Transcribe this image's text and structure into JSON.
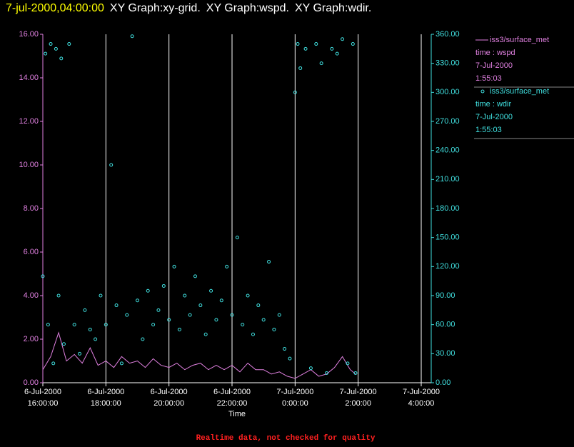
{
  "chart_data": {
    "type": "line-scatter",
    "title": [
      "7-jul-2000,04:00:00",
      "XY Graph:xy-grid.",
      "XY Graph:wspd.",
      "XY Graph:wdir."
    ],
    "x_label": "Time",
    "note": "Realtime data, not checked for quality",
    "xlim": [
      "2000-07-06T16:00:00",
      "2000-07-07T04:19:00"
    ],
    "xticks": [
      {
        "value": "2000-07-06T16:00:00",
        "label": [
          "6-Jul-2000",
          "16:00:00"
        ]
      },
      {
        "value": "2000-07-06T18:00:00",
        "label": [
          "6-Jul-2000",
          "18:00:00"
        ]
      },
      {
        "value": "2000-07-06T20:00:00",
        "label": [
          "6-Jul-2000",
          "20:00:00"
        ]
      },
      {
        "value": "2000-07-06T22:00:00",
        "label": [
          "6-Jul-2000",
          "22:00:00"
        ]
      },
      {
        "value": "2000-07-07T00:00:00",
        "label": [
          "7-Jul-2000",
          "0:00:00"
        ]
      },
      {
        "value": "2000-07-07T02:00:00",
        "label": [
          "7-Jul-2000",
          "2:00:00"
        ]
      },
      {
        "value": "2000-07-07T04:00:00",
        "label": [
          "7-Jul-2000",
          "4:00:00"
        ]
      }
    ],
    "ylim": [
      0,
      16
    ],
    "yticks": [
      {
        "value": 0,
        "label": "0.00"
      },
      {
        "value": 2,
        "label": "2.00"
      },
      {
        "value": 4,
        "label": "4.00"
      },
      {
        "value": 6,
        "label": "6.00"
      },
      {
        "value": 8,
        "label": "8.00"
      },
      {
        "value": 10,
        "label": "10.00"
      },
      {
        "value": 12,
        "label": "12.00"
      },
      {
        "value": 14,
        "label": "14.00"
      },
      {
        "value": 16,
        "label": "16.00"
      }
    ],
    "y2lim": [
      0,
      360
    ],
    "y2ticks": [
      {
        "value": 0,
        "label": "0.00"
      },
      {
        "value": 30,
        "label": "30.00"
      },
      {
        "value": 60,
        "label": "60.00"
      },
      {
        "value": 90,
        "label": "90.00"
      },
      {
        "value": 120,
        "label": "120.00"
      },
      {
        "value": 150,
        "label": "150.00"
      },
      {
        "value": 180,
        "label": "180.00"
      },
      {
        "value": 210,
        "label": "210.00"
      },
      {
        "value": 240,
        "label": "240.00"
      },
      {
        "value": 270,
        "label": "270.00"
      },
      {
        "value": 300,
        "label": "300.00"
      },
      {
        "value": 330,
        "label": "330.00"
      },
      {
        "value": 360,
        "label": "360.00"
      }
    ],
    "grid": true,
    "series": [
      {
        "name": "iss3/surface_met",
        "kind": "line",
        "color": "#e080e0",
        "axis": "y",
        "legend_lines": [
          "time : wspd",
          "7-Jul-2000",
          "1:55:03"
        ],
        "x": [
          "2000-07-06T16:00",
          "2000-07-06T16:15",
          "2000-07-06T16:30",
          "2000-07-06T16:45",
          "2000-07-06T17:00",
          "2000-07-06T17:15",
          "2000-07-06T17:30",
          "2000-07-06T17:45",
          "2000-07-06T18:00",
          "2000-07-06T18:15",
          "2000-07-06T18:30",
          "2000-07-06T18:45",
          "2000-07-06T19:00",
          "2000-07-06T19:15",
          "2000-07-06T19:30",
          "2000-07-06T19:45",
          "2000-07-06T20:00",
          "2000-07-06T20:15",
          "2000-07-06T20:30",
          "2000-07-06T20:45",
          "2000-07-06T21:00",
          "2000-07-06T21:15",
          "2000-07-06T21:30",
          "2000-07-06T21:45",
          "2000-07-06T22:00",
          "2000-07-06T22:15",
          "2000-07-06T22:30",
          "2000-07-06T22:45",
          "2000-07-06T23:00",
          "2000-07-06T23:15",
          "2000-07-06T23:30",
          "2000-07-06T23:45",
          "2000-07-07T00:00",
          "2000-07-07T00:15",
          "2000-07-07T00:30",
          "2000-07-07T00:45",
          "2000-07-07T01:00",
          "2000-07-07T01:15",
          "2000-07-07T01:30",
          "2000-07-07T01:45",
          "2000-07-07T01:55"
        ],
        "values": [
          0.6,
          1.2,
          2.3,
          1.0,
          1.3,
          0.9,
          1.6,
          0.8,
          1.0,
          0.7,
          1.2,
          0.9,
          1.0,
          0.7,
          1.1,
          0.8,
          0.7,
          0.9,
          0.6,
          0.8,
          0.9,
          0.6,
          0.8,
          0.6,
          0.8,
          0.5,
          0.9,
          0.6,
          0.6,
          0.4,
          0.5,
          0.3,
          0.2,
          0.4,
          0.6,
          0.3,
          0.4,
          0.7,
          1.2,
          0.6,
          0.4
        ]
      },
      {
        "name": "iss3/surface_met",
        "kind": "scatter",
        "color": "#40e0e0",
        "axis": "y2",
        "legend_lines": [
          "time : wdir",
          "7-Jul-2000",
          "1:55:03"
        ],
        "x": [
          "2000-07-06T16:00",
          "2000-07-06T16:05",
          "2000-07-06T16:10",
          "2000-07-06T16:15",
          "2000-07-06T16:20",
          "2000-07-06T16:25",
          "2000-07-06T16:30",
          "2000-07-06T16:35",
          "2000-07-06T16:40",
          "2000-07-06T16:50",
          "2000-07-06T17:00",
          "2000-07-06T17:10",
          "2000-07-06T17:20",
          "2000-07-06T17:30",
          "2000-07-06T17:40",
          "2000-07-06T17:50",
          "2000-07-06T18:00",
          "2000-07-06T18:10",
          "2000-07-06T18:20",
          "2000-07-06T18:30",
          "2000-07-06T18:40",
          "2000-07-06T18:50",
          "2000-07-06T19:00",
          "2000-07-06T19:10",
          "2000-07-06T19:20",
          "2000-07-06T19:30",
          "2000-07-06T19:40",
          "2000-07-06T19:50",
          "2000-07-06T20:00",
          "2000-07-06T20:10",
          "2000-07-06T20:20",
          "2000-07-06T20:30",
          "2000-07-06T20:40",
          "2000-07-06T20:50",
          "2000-07-06T21:00",
          "2000-07-06T21:10",
          "2000-07-06T21:20",
          "2000-07-06T21:30",
          "2000-07-06T21:40",
          "2000-07-06T21:50",
          "2000-07-06T22:00",
          "2000-07-06T22:10",
          "2000-07-06T22:20",
          "2000-07-06T22:30",
          "2000-07-06T22:40",
          "2000-07-06T22:50",
          "2000-07-06T23:00",
          "2000-07-06T23:10",
          "2000-07-06T23:20",
          "2000-07-06T23:30",
          "2000-07-06T23:40",
          "2000-07-06T23:50",
          "2000-07-07T00:00",
          "2000-07-07T00:05",
          "2000-07-07T00:10",
          "2000-07-07T00:20",
          "2000-07-07T00:30",
          "2000-07-07T00:40",
          "2000-07-07T00:50",
          "2000-07-07T01:00",
          "2000-07-07T01:10",
          "2000-07-07T01:20",
          "2000-07-07T01:30",
          "2000-07-07T01:40",
          "2000-07-07T01:50",
          "2000-07-07T01:55"
        ],
        "values": [
          110,
          340,
          60,
          350,
          20,
          345,
          90,
          335,
          40,
          350,
          60,
          30,
          75,
          55,
          45,
          90,
          60,
          225,
          80,
          20,
          70,
          358,
          85,
          45,
          95,
          60,
          75,
          100,
          65,
          120,
          55,
          90,
          70,
          110,
          80,
          50,
          95,
          65,
          85,
          120,
          70,
          150,
          60,
          90,
          50,
          80,
          65,
          125,
          55,
          70,
          35,
          25,
          300,
          350,
          325,
          345,
          15,
          350,
          330,
          10,
          345,
          340,
          355,
          20,
          350,
          10
        ]
      }
    ]
  }
}
